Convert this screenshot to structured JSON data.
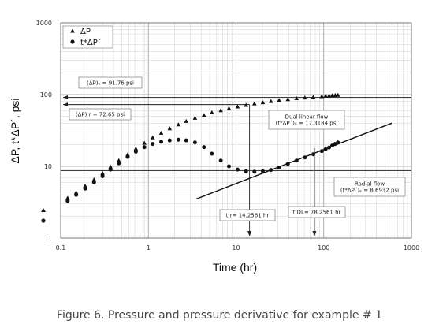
{
  "caption": "Figure 6. Pressure and pressure derivative for example # 1",
  "chart_data": {
    "type": "scatter",
    "x_scale": "log",
    "y_scale": "log",
    "xlim": [
      0.1,
      1000
    ],
    "ylim": [
      1,
      1000
    ],
    "xlabel": "Time (hr)",
    "ylabel": "ΔP, t*ΔP´, psi",
    "x_ticks": [
      "0.1",
      "1",
      "10",
      "100",
      "1000"
    ],
    "y_ticks": [
      "1",
      "10",
      "100",
      "1000"
    ],
    "grid": true,
    "legend_position": "top-left",
    "series": [
      {
        "name": "ΔP",
        "marker": "triangle",
        "x": [
          0.12,
          0.15,
          0.19,
          0.24,
          0.3,
          0.37,
          0.46,
          0.58,
          0.72,
          0.9,
          1.12,
          1.4,
          1.75,
          2.2,
          2.7,
          3.4,
          4.3,
          5.3,
          6.7,
          8.3,
          10.4,
          13,
          16.2,
          20.2,
          25,
          31,
          39,
          49,
          61,
          76,
          95,
          105,
          115,
          125,
          135,
          145
        ],
        "y": [
          3.6,
          4.3,
          5.3,
          6.5,
          8.0,
          9.8,
          12.0,
          14.5,
          17.5,
          21.0,
          25.0,
          29.0,
          33.5,
          38.0,
          42.5,
          47.0,
          51.5,
          56.0,
          60.0,
          64.0,
          67.5,
          71.0,
          74.5,
          77.5,
          80.5,
          83.0,
          85.5,
          88.0,
          90.0,
          92.0,
          94.0,
          95.0,
          96.0,
          97.0,
          97.5,
          98.0
        ]
      },
      {
        "name": "t*ΔP´",
        "marker": "circle",
        "x": [
          0.12,
          0.15,
          0.19,
          0.24,
          0.3,
          0.37,
          0.46,
          0.58,
          0.72,
          0.9,
          1.12,
          1.4,
          1.75,
          2.2,
          2.7,
          3.4,
          4.3,
          5.3,
          6.7,
          8.3,
          10.4,
          13,
          16.2,
          20.2,
          25,
          31,
          39,
          49,
          61,
          76,
          95,
          105,
          115,
          125,
          135,
          145
        ],
        "y": [
          3.3,
          4.0,
          4.9,
          6.0,
          7.3,
          9.0,
          11.0,
          13.5,
          16.0,
          18.5,
          20.5,
          22.0,
          23.0,
          23.5,
          23.0,
          21.5,
          18.5,
          15.0,
          12.0,
          10.0,
          9.0,
          8.5,
          8.4,
          8.5,
          8.9,
          9.6,
          10.8,
          12.0,
          13.3,
          14.7,
          16.3,
          17.3,
          18.3,
          19.5,
          20.5,
          21.5
        ]
      }
    ],
    "reference_lines": [
      {
        "label": "(ΔP)ₑ = 91.76 psi",
        "y": 91.76
      },
      {
        "label": "(ΔP) r = 72.65 psi",
        "y": 72.65
      },
      {
        "label": "(t*ΔP´)ₑ = 8.6932 psi",
        "y": 8.6932
      },
      {
        "label": "t r= 14.2561 hr",
        "x": 14.2561
      },
      {
        "label": "t DL= 78.2561 hr",
        "x": 78.2561
      }
    ],
    "trend_line": {
      "label": "Dual linear flow",
      "x": [
        3.5,
        600
      ],
      "y": [
        3.5,
        40
      ]
    },
    "annotations": [
      {
        "id": "pe",
        "lines": [
          "(ΔP)ₑ = 91.76 psi"
        ]
      },
      {
        "id": "pr",
        "lines": [
          "(ΔP) r = 72.65 psi"
        ]
      },
      {
        "id": "dual",
        "lines": [
          "Dual linear flow",
          "(t*ΔP´)ₑ = 17.3184 psi"
        ]
      },
      {
        "id": "radial",
        "lines": [
          "Radial flow",
          "(t*ΔP´)ₑ = 8.6932 psi"
        ]
      },
      {
        "id": "tr",
        "lines": [
          "t r= 14.2561 hr"
        ]
      },
      {
        "id": "tdl",
        "lines": [
          "t DL= 78.2561 hr"
        ]
      }
    ]
  }
}
